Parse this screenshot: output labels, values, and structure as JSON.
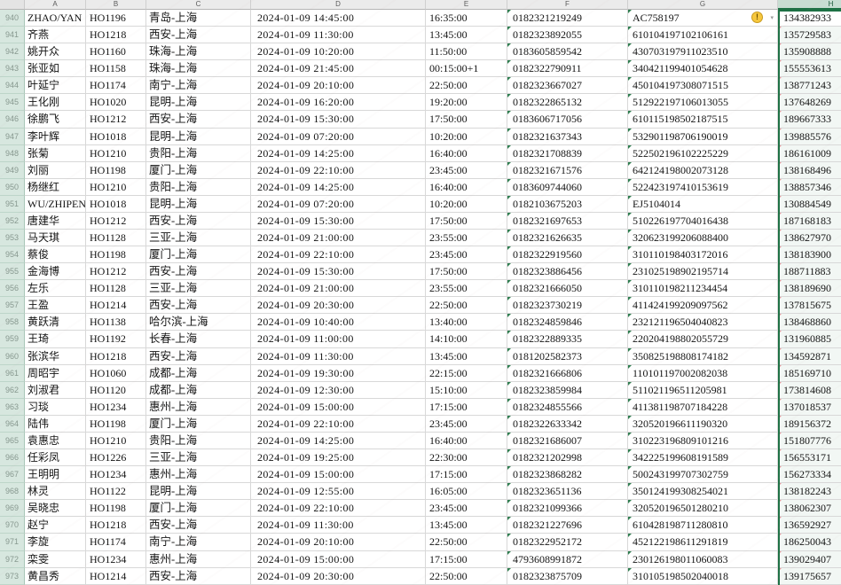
{
  "app": {
    "kind": "spreadsheet-grid",
    "selected_column": "H",
    "accent_color": "#1e7145",
    "row_header_bg": "#d7e7df",
    "column_header_bg": "#ebebeb"
  },
  "column_headers": [
    "A",
    "B",
    "C",
    "D",
    "E",
    "F",
    "G",
    "H"
  ],
  "error_indicator": {
    "glyph": "!",
    "dropdown_glyph": "▾",
    "name": "trace-error"
  },
  "rows": [
    [
      "940",
      "ZHAO/YAN",
      "HO1196",
      "青岛-上海",
      "2024-01-09 14:45:00",
      "16:35:00",
      "0182321219249",
      "AC758197",
      "134382933"
    ],
    [
      "941",
      "齐燕",
      "HO1218",
      "西安-上海",
      "2024-01-09 11:30:00",
      "13:45:00",
      "0182323892055",
      "610104197102106161",
      "135729583"
    ],
    [
      "942",
      "姚开众",
      "HO1160",
      "珠海-上海",
      "2024-01-09 10:20:00",
      "11:50:00",
      "0183605859542",
      "430703197911023510",
      "135908888"
    ],
    [
      "943",
      "张亚如",
      "HO1158",
      "珠海-上海",
      "2024-01-09 21:45:00",
      "00:15:00+1",
      "0182322790911",
      "340421199401054628",
      "155553613"
    ],
    [
      "944",
      "叶延宁",
      "HO1174",
      "南宁-上海",
      "2024-01-09 20:10:00",
      "22:50:00",
      "0182323667027",
      "450104197308071515",
      "138771243"
    ],
    [
      "945",
      "王化刚",
      "HO1020",
      "昆明-上海",
      "2024-01-09 16:20:00",
      "19:20:00",
      "0182322865132",
      "512922197106013055",
      "137648269"
    ],
    [
      "946",
      "徐鹏飞",
      "HO1212",
      "西安-上海",
      "2024-01-09 15:30:00",
      "17:50:00",
      "0183606717056",
      "610115198502187515",
      "189667333"
    ],
    [
      "947",
      "李叶辉",
      "HO1018",
      "昆明-上海",
      "2024-01-09 07:20:00",
      "10:20:00",
      "0182321637343",
      "532901198706190019",
      "139885576"
    ],
    [
      "948",
      "张菊",
      "HO1210",
      "贵阳-上海",
      "2024-01-09 14:25:00",
      "16:40:00",
      "0182321708839",
      "522502196102225229",
      "186161009"
    ],
    [
      "949",
      "刘丽",
      "HO1198",
      "厦门-上海",
      "2024-01-09 22:10:00",
      "23:45:00",
      "0182321671576",
      "642124198002073128",
      "138168496"
    ],
    [
      "950",
      "杨继红",
      "HO1210",
      "贵阳-上海",
      "2024-01-09 14:25:00",
      "16:40:00",
      "0183609744060",
      "522423197410153619",
      "138857346"
    ],
    [
      "951",
      "WU/ZHIPENG",
      "HO1018",
      "昆明-上海",
      "2024-01-09 07:20:00",
      "10:20:00",
      "0182103675203",
      "EJ5104014",
      "130884549"
    ],
    [
      "952",
      "唐建华",
      "HO1212",
      "西安-上海",
      "2024-01-09 15:30:00",
      "17:50:00",
      "0182321697653",
      "510226197704016438",
      "187168183"
    ],
    [
      "953",
      "马天琪",
      "HO1128",
      "三亚-上海",
      "2024-01-09 21:00:00",
      "23:55:00",
      "0182321626635",
      "320623199206088400",
      "138627970"
    ],
    [
      "954",
      "蔡俊",
      "HO1198",
      "厦门-上海",
      "2024-01-09 22:10:00",
      "23:45:00",
      "0182322919560",
      "310110198403172016",
      "138183900"
    ],
    [
      "955",
      "金海博",
      "HO1212",
      "西安-上海",
      "2024-01-09 15:30:00",
      "17:50:00",
      "0182323886456",
      "231025198902195714",
      "188711883"
    ],
    [
      "956",
      "左乐",
      "HO1128",
      "三亚-上海",
      "2024-01-09 21:00:00",
      "23:55:00",
      "0182321666050",
      "310110198211234454",
      "138189690"
    ],
    [
      "957",
      "王盈",
      "HO1214",
      "西安-上海",
      "2024-01-09 20:30:00",
      "22:50:00",
      "0182323730219",
      "411424199209097562",
      "137815675"
    ],
    [
      "958",
      "黄跃清",
      "HO1138",
      "哈尔滨-上海",
      "2024-01-09 10:40:00",
      "13:40:00",
      "0182324859846",
      "232121196504040823",
      "138468860"
    ],
    [
      "959",
      "王琦",
      "HO1192",
      "长春-上海",
      "2024-01-09 11:00:00",
      "14:10:00",
      "0182322889335",
      "220204198802055729",
      "131960885"
    ],
    [
      "960",
      "张滨华",
      "HO1218",
      "西安-上海",
      "2024-01-09 11:30:00",
      "13:45:00",
      "0181202582373",
      "350825198808174182",
      "134592871"
    ],
    [
      "961",
      "周昭宇",
      "HO1060",
      "成都-上海",
      "2024-01-09 19:30:00",
      "22:15:00",
      "0182321666806",
      "110101197002082038",
      "185169710"
    ],
    [
      "962",
      "刘淑君",
      "HO1120",
      "成都-上海",
      "2024-01-09 12:30:00",
      "15:10:00",
      "0182323859984",
      "511021196511205981",
      "173814608"
    ],
    [
      "963",
      "习琰",
      "HO1234",
      "惠州-上海",
      "2024-01-09 15:00:00",
      "17:15:00",
      "0182324855566",
      "411381198707184228",
      "137018537"
    ],
    [
      "964",
      "陆伟",
      "HO1198",
      "厦门-上海",
      "2024-01-09 22:10:00",
      "23:45:00",
      "0182322633342",
      "320520196611190320",
      "189156372"
    ],
    [
      "965",
      "袁惠忠",
      "HO1210",
      "贵阳-上海",
      "2024-01-09 14:25:00",
      "16:40:00",
      "0182321686007",
      "310223196809101216",
      "151807776"
    ],
    [
      "966",
      "任彩凤",
      "HO1226",
      "三亚-上海",
      "2024-01-09 19:25:00",
      "22:30:00",
      "0182321202998",
      "342225199608191589",
      "156553171"
    ],
    [
      "967",
      "王明明",
      "HO1234",
      "惠州-上海",
      "2024-01-09 15:00:00",
      "17:15:00",
      "0182323868282",
      "500243199707302759",
      "156273334"
    ],
    [
      "968",
      "林灵",
      "HO1122",
      "昆明-上海",
      "2024-01-09 12:55:00",
      "16:05:00",
      "0182323651136",
      "350124199308254021",
      "138182243"
    ],
    [
      "969",
      "吴晓忠",
      "HO1198",
      "厦门-上海",
      "2024-01-09 22:10:00",
      "23:45:00",
      "0182321099366",
      "320520196501280210",
      "138062307"
    ],
    [
      "970",
      "赵宁",
      "HO1218",
      "西安-上海",
      "2024-01-09 11:30:00",
      "13:45:00",
      "0182321227696",
      "610428198711280810",
      "136592927"
    ],
    [
      "971",
      "李旋",
      "HO1174",
      "南宁-上海",
      "2024-01-09 20:10:00",
      "22:50:00",
      "0182322952172",
      "452122198611291819",
      "186250043"
    ],
    [
      "972",
      "栾雯",
      "HO1234",
      "惠州-上海",
      "2024-01-09 15:00:00",
      "17:15:00",
      "4793608991872",
      "230126198011060083",
      "139029407"
    ],
    [
      "973",
      "黄昌秀",
      "HO1214",
      "西安-上海",
      "2024-01-09 20:30:00",
      "22:50:00",
      "0182323875709",
      "310105198502040018",
      "139175657"
    ]
  ]
}
